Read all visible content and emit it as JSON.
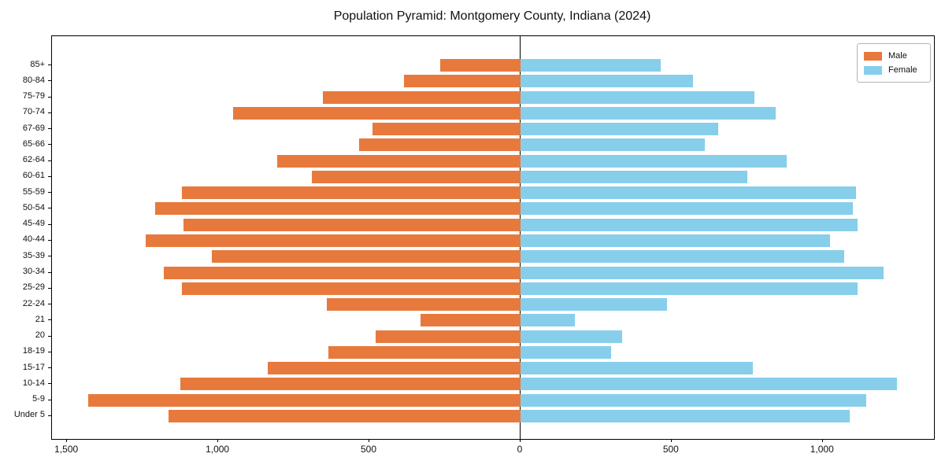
{
  "figure": {
    "title": "Population Pyramid: Montgomery County, Indiana (2024)"
  },
  "chart_data": {
    "type": "bar",
    "variant": "population-pyramid-horizontal-diverging",
    "title": "Population Pyramid: Montgomery County, Indiana (2024)",
    "categories_top_to_bottom": [
      "85+",
      "80-84",
      "75-79",
      "70-74",
      "67-69",
      "65-66",
      "62-64",
      "60-61",
      "55-59",
      "50-54",
      "45-49",
      "40-44",
      "35-39",
      "30-34",
      "25-29",
      "22-24",
      "21",
      "20",
      "18-19",
      "15-17",
      "10-14",
      "5-9",
      "Under 5"
    ],
    "series": [
      {
        "name": "Male",
        "side": "left",
        "color": "#e8793c",
        "values": [
          265,
          385,
          655,
          950,
          490,
          535,
          805,
          690,
          1120,
          1210,
          1115,
          1240,
          1020,
          1180,
          1120,
          640,
          330,
          480,
          635,
          835,
          1125,
          1430,
          1165
        ]
      },
      {
        "name": "Female",
        "side": "right",
        "color": "#87ceeb",
        "values": [
          465,
          570,
          775,
          845,
          655,
          610,
          880,
          750,
          1110,
          1100,
          1115,
          1025,
          1070,
          1200,
          1115,
          485,
          180,
          335,
          300,
          770,
          1245,
          1145,
          1090
        ]
      }
    ],
    "x_ticks": [
      {
        "value": -1500,
        "label": "1,500"
      },
      {
        "value": -1000,
        "label": "1,000"
      },
      {
        "value": -500,
        "label": "500"
      },
      {
        "value": 0,
        "label": "0"
      },
      {
        "value": 500,
        "label": "500"
      },
      {
        "value": 1000,
        "label": "1,000"
      }
    ],
    "xlim": {
      "left_extent": 1550,
      "right_extent": 1368
    },
    "grid": false,
    "legend": {
      "position": "upper-right",
      "entries": [
        "Male",
        "Female"
      ]
    },
    "axis_color": "#000000",
    "background": "#ffffff"
  }
}
